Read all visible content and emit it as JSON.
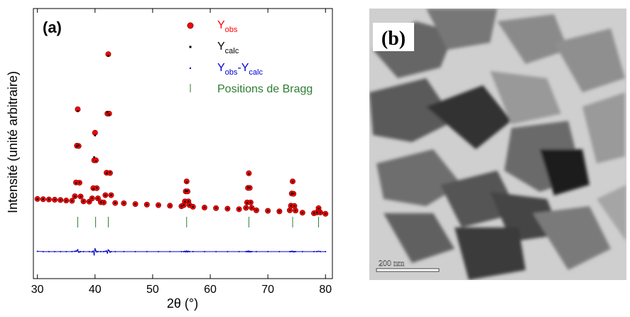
{
  "chart_data": {
    "type": "scatter",
    "panel_label": "(a)",
    "x_label": "2θ (°)",
    "y_label": "Intensité (unité arbitraire)",
    "xlim": [
      29.3,
      81.2
    ],
    "xticks": [
      30,
      40,
      50,
      60,
      70,
      80
    ],
    "ylim": [
      0,
      100
    ],
    "x": [
      30,
      31,
      32,
      33,
      34,
      35,
      36,
      36.5,
      36.7,
      36.85,
      37,
      37.15,
      37.3,
      37.5,
      38,
      39,
      39.5,
      39.7,
      39.85,
      40,
      40.15,
      40.3,
      40.5,
      41,
      41.5,
      41.8,
      42,
      42.15,
      42.3,
      42.45,
      42.6,
      42.8,
      43.5,
      45,
      47,
      49,
      51,
      53,
      55,
      55.4,
      55.6,
      55.75,
      55.9,
      56.05,
      56.2,
      56.4,
      57,
      59,
      61,
      63,
      65,
      66.2,
      66.4,
      66.55,
      66.7,
      66.85,
      67,
      67.2,
      68,
      70,
      72,
      73.8,
      74,
      74.15,
      74.3,
      74.45,
      74.6,
      74.8,
      76,
      78,
      78.5,
      78.8,
      79.1,
      80
    ],
    "series": [
      {
        "name": [
          "Y",
          "obs"
        ],
        "color": "#ff0000",
        "marker": "circle",
        "values": [
          29.5,
          29.4,
          29.3,
          29.2,
          29.1,
          28.9,
          28.8,
          30.5,
          35.6,
          49.2,
          62.7,
          49.1,
          35.5,
          30.4,
          28.6,
          28.5,
          29.7,
          33.5,
          43.8,
          54.0,
          43.8,
          33.5,
          29.7,
          28.3,
          28.2,
          30.9,
          39.2,
          61.1,
          83.1,
          61.1,
          39.1,
          30.9,
          28.0,
          27.9,
          27.6,
          27.4,
          27.2,
          27.0,
          26.8,
          27.2,
          28.6,
          32.3,
          36.0,
          32.3,
          28.6,
          27.2,
          26.6,
          26.3,
          26.1,
          25.9,
          25.7,
          26.2,
          28.2,
          33.6,
          39.0,
          33.6,
          28.2,
          26.2,
          25.3,
          25.1,
          24.9,
          25.3,
          27.0,
          31.5,
          36.0,
          31.4,
          26.9,
          25.2,
          24.4,
          24.2,
          24.5,
          26.1,
          24.5,
          24.0
        ]
      },
      {
        "name": [
          "Y",
          "calc"
        ],
        "color": "#000000",
        "marker": "square",
        "values": [
          29.4,
          29.4,
          29.3,
          29.2,
          29.1,
          28.9,
          28.8,
          30.4,
          35.4,
          49.0,
          62.0,
          49.3,
          35.6,
          30.4,
          28.6,
          28.5,
          29.8,
          33.3,
          45.0,
          53.0,
          43.5,
          33.6,
          29.7,
          28.3,
          28.2,
          30.8,
          39.0,
          61.6,
          82.5,
          60.8,
          39.3,
          30.9,
          28.0,
          27.9,
          27.6,
          27.4,
          27.2,
          27.0,
          26.8,
          27.2,
          28.5,
          32.4,
          35.8,
          32.4,
          28.6,
          27.2,
          26.6,
          26.3,
          26.1,
          25.9,
          25.7,
          26.2,
          28.1,
          33.7,
          38.8,
          33.7,
          28.2,
          26.2,
          25.3,
          25.1,
          24.9,
          25.3,
          27.0,
          31.4,
          35.9,
          31.5,
          26.9,
          25.2,
          24.4,
          24.2,
          24.5,
          26.0,
          24.5,
          24.0
        ]
      },
      {
        "name": [
          "Y",
          "obs",
          "-Y",
          "calc"
        ],
        "color": "#0000cc",
        "marker": "dot",
        "values": [
          10.1,
          10.0,
          10.0,
          10.0,
          10.0,
          10.0,
          10.0,
          10.1,
          10.2,
          10.2,
          10.7,
          9.8,
          9.9,
          10.0,
          10.0,
          10.0,
          9.9,
          10.2,
          8.8,
          11.0,
          10.3,
          9.9,
          10.0,
          10.0,
          10.0,
          10.1,
          10.2,
          9.5,
          10.6,
          10.3,
          9.8,
          10.0,
          10.0,
          10.0,
          10.0,
          10.0,
          10.0,
          10.0,
          10.0,
          10.0,
          10.1,
          9.9,
          10.2,
          9.9,
          10.1,
          10.0,
          10.0,
          10.0,
          10.0,
          10.0,
          10.0,
          10.0,
          10.1,
          9.9,
          10.2,
          9.9,
          10.0,
          10.0,
          10.0,
          10.0,
          10.0,
          10.0,
          10.0,
          10.1,
          10.1,
          9.9,
          10.0,
          10.0,
          10.0,
          10.0,
          10.0,
          10.1,
          10.0,
          10.0
        ]
      }
    ],
    "bragg": {
      "name": "Positions de Bragg",
      "color": "#2e7d32",
      "x": [
        37,
        40.1,
        42.3,
        55.9,
        66.7,
        74.3,
        78.8
      ]
    }
  },
  "image": {
    "label": "(b)",
    "scale_bar": "200 nm"
  }
}
